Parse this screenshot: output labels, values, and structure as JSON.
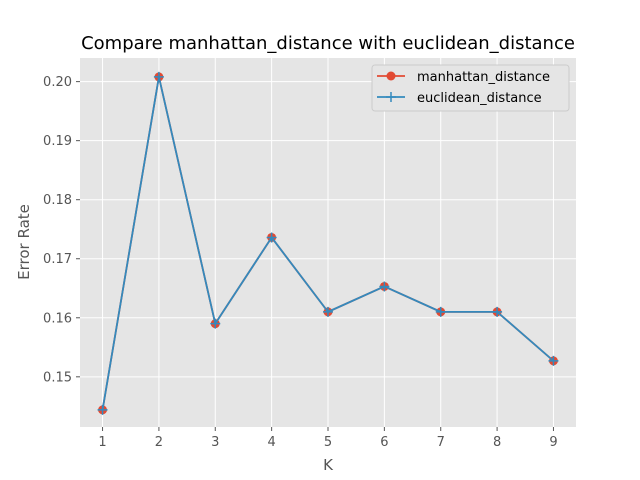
{
  "chart_data": {
    "type": "line",
    "title": "Compare manhattan_distance  with euclidean_distance",
    "xlabel": "K",
    "ylabel": "Error Rate",
    "x": [
      1,
      2,
      3,
      4,
      5,
      6,
      7,
      8,
      9
    ],
    "xticks": [
      "1",
      "2",
      "3",
      "4",
      "5",
      "6",
      "7",
      "8",
      "9"
    ],
    "yticks": [
      "0.15",
      "0.16",
      "0.17",
      "0.18",
      "0.19",
      "0.20"
    ],
    "ylim": [
      0.1415,
      0.204
    ],
    "xlim": [
      0.6,
      9.4
    ],
    "grid": true,
    "legend_position": "top-right",
    "series": [
      {
        "name": "manhattan_distance",
        "marker": "circle",
        "color": "#E24A33",
        "values": [
          0.1444,
          0.2008,
          0.159,
          0.1736,
          0.161,
          0.1653,
          0.161,
          0.161,
          0.1527
        ]
      },
      {
        "name": "euclidean_distance",
        "marker": "plus",
        "color": "#348ABD",
        "values": [
          0.1444,
          0.2008,
          0.159,
          0.1736,
          0.161,
          0.1653,
          0.161,
          0.161,
          0.1527
        ]
      }
    ]
  }
}
